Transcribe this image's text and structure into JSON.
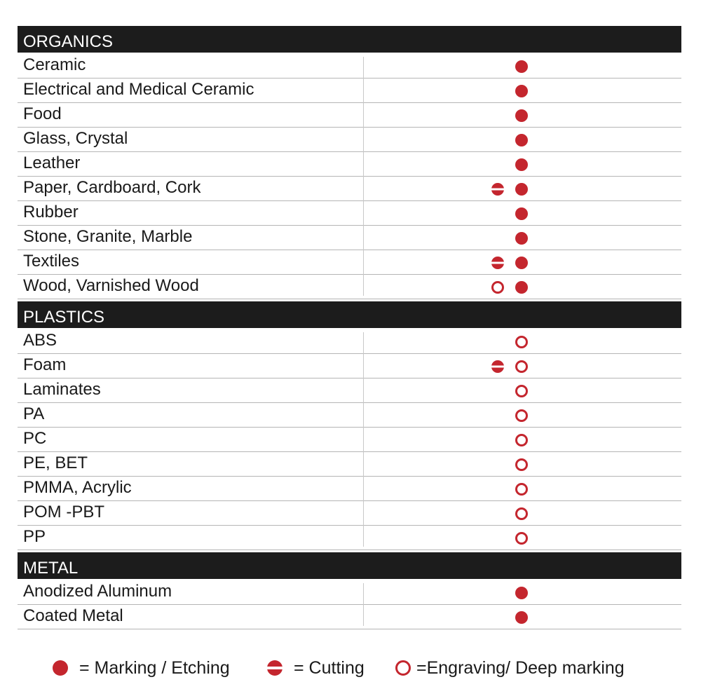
{
  "accent_color": "#c4262e",
  "sections": [
    {
      "title": "ORGANICS",
      "rows": [
        {
          "label": "Ceramic",
          "marks": [
            null,
            "marking"
          ]
        },
        {
          "label": "Electrical and Medical Ceramic",
          "marks": [
            null,
            "marking"
          ]
        },
        {
          "label": "Food",
          "marks": [
            null,
            "marking"
          ]
        },
        {
          "label": "Glass, Crystal",
          "marks": [
            null,
            "marking"
          ]
        },
        {
          "label": "Leather",
          "marks": [
            null,
            "marking"
          ]
        },
        {
          "label": "Paper, Cardboard, Cork",
          "marks": [
            "cutting",
            "marking"
          ]
        },
        {
          "label": "Rubber",
          "marks": [
            null,
            "marking"
          ]
        },
        {
          "label": "Stone, Granite, Marble",
          "marks": [
            null,
            "marking"
          ]
        },
        {
          "label": "Textiles",
          "marks": [
            "cutting",
            "marking"
          ]
        },
        {
          "label": "Wood, Varnished Wood",
          "marks": [
            "engraving",
            "marking"
          ]
        }
      ]
    },
    {
      "title": "PLASTICS",
      "rows": [
        {
          "label": "ABS",
          "marks": [
            null,
            "engraving"
          ]
        },
        {
          "label": "Foam",
          "marks": [
            "cutting",
            "engraving"
          ]
        },
        {
          "label": "Laminates",
          "marks": [
            null,
            "engraving"
          ]
        },
        {
          "label": "PA",
          "marks": [
            null,
            "engraving"
          ]
        },
        {
          "label": "PC",
          "marks": [
            null,
            "engraving"
          ]
        },
        {
          "label": "PE, BET",
          "marks": [
            null,
            "engraving"
          ]
        },
        {
          "label": "PMMA, Acrylic",
          "marks": [
            null,
            "engraving"
          ]
        },
        {
          "label": "POM -PBT",
          "marks": [
            null,
            "engraving"
          ]
        },
        {
          "label": "PP",
          "marks": [
            null,
            "engraving"
          ]
        }
      ]
    },
    {
      "title": "METAL",
      "rows": [
        {
          "label": "Anodized Aluminum",
          "marks": [
            null,
            "marking"
          ]
        },
        {
          "label": "Coated Metal",
          "marks": [
            null,
            "marking"
          ]
        }
      ]
    }
  ],
  "legend": [
    {
      "icon": "marking",
      "label": "= Marking / Etching"
    },
    {
      "icon": "cutting",
      "label": "= Cutting"
    },
    {
      "icon": "engraving",
      "label": "=Engraving/ Deep marking"
    }
  ]
}
